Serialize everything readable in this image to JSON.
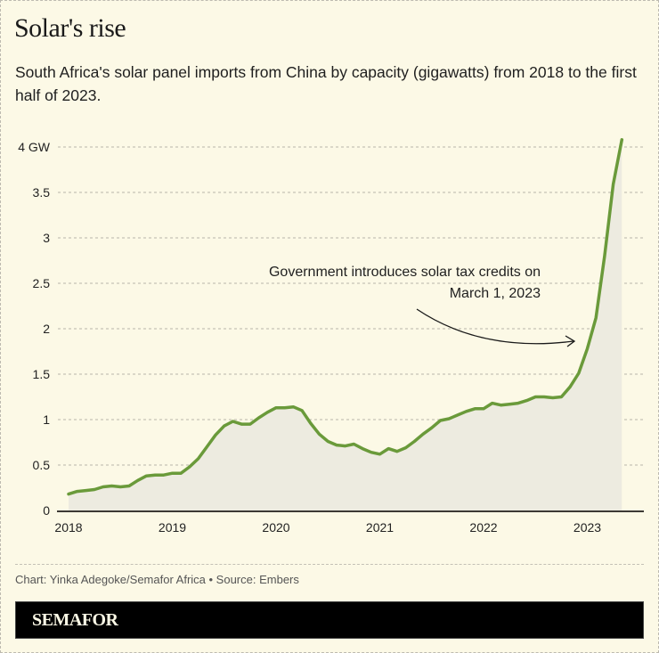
{
  "header": {
    "title": "Solar's rise",
    "subtitle": "South Africa's solar panel imports from China by capacity (gigawatts) from 2018 to the first half of 2023."
  },
  "colors": {
    "background": "#fcf9e6",
    "line": "#6a9a3a",
    "area": "#edebe0",
    "grid": "#b8b5ab",
    "axis": "#3d3a35",
    "brand_bar": "#000000",
    "brand_text": "#fcf9e6"
  },
  "chart_data": {
    "type": "area",
    "title": "Solar's rise",
    "xlabel": "",
    "ylabel": "",
    "unit": "GW",
    "x_start": "2018-01",
    "x_frequency": "monthly",
    "xlim": [
      2018.0,
      2023.5
    ],
    "ylim": [
      0,
      4
    ],
    "x_ticks": [
      2018,
      2019,
      2020,
      2021,
      2022,
      2023
    ],
    "x_tick_labels": [
      "2018",
      "2019",
      "2020",
      "2021",
      "2022",
      "2023"
    ],
    "y_ticks": [
      0,
      0.5,
      1,
      1.5,
      2,
      2.5,
      3,
      3.5,
      4
    ],
    "y_tick_labels": [
      "0",
      "0.5",
      "1",
      "1.5",
      "2",
      "2.5",
      "3",
      "3.5",
      "4 GW"
    ],
    "grid": true,
    "series": [
      {
        "name": "Solar panel imports from China (GW)",
        "values": [
          0.18,
          0.21,
          0.22,
          0.23,
          0.26,
          0.27,
          0.26,
          0.27,
          0.33,
          0.38,
          0.39,
          0.39,
          0.41,
          0.41,
          0.48,
          0.57,
          0.7,
          0.83,
          0.93,
          0.98,
          0.95,
          0.95,
          1.02,
          1.08,
          1.13,
          1.13,
          1.14,
          1.1,
          0.96,
          0.84,
          0.76,
          0.72,
          0.71,
          0.73,
          0.68,
          0.64,
          0.62,
          0.68,
          0.65,
          0.69,
          0.76,
          0.84,
          0.91,
          0.99,
          1.01,
          1.05,
          1.09,
          1.12,
          1.12,
          1.18,
          1.16,
          1.17,
          1.18,
          1.21,
          1.25,
          1.25,
          1.24,
          1.25,
          1.36,
          1.51,
          1.78,
          2.12,
          2.8,
          3.59,
          4.08
        ]
      }
    ],
    "annotations": [
      {
        "text_line1": "Government introduces solar tax credits on",
        "text_line2": "March 1, 2023",
        "points_to": "2023-03"
      }
    ]
  },
  "footer": {
    "credit": "Chart: Yinka Adegoke/Semafor Africa • Source: Embers",
    "brand": "SEMAFOR"
  }
}
